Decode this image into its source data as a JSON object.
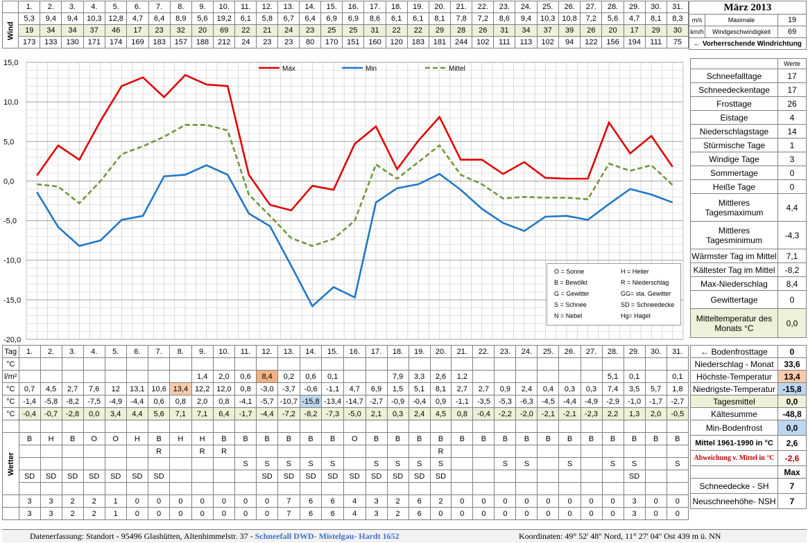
{
  "title": "März 2013",
  "wind": {
    "label": "Wind",
    "unit_ms": "m/s",
    "unit_kmh": "km/h",
    "max_label_1": "Maximale",
    "max_label_2": "Windgeschwindigkeit",
    "max_ms": "19",
    "max_kmh": "69",
    "dir_label": "← Vorherrschende Windrichtung",
    "ms": [
      "5,3",
      "9,4",
      "9,4",
      "10,3",
      "12,8",
      "4,7",
      "6,4",
      "8,9",
      "5,6",
      "19,2",
      "6,1",
      "5,8",
      "6,7",
      "6,4",
      "6,9",
      "6,9",
      "8,6",
      "6,1",
      "6,1",
      "8,1",
      "7,8",
      "7,2",
      "8,6",
      "9,4",
      "10,3",
      "10,8",
      "7,2",
      "5,6",
      "4,7",
      "8,1",
      "8,3"
    ],
    "kmh": [
      "19",
      "34",
      "34",
      "37",
      "46",
      "17",
      "23",
      "32",
      "20",
      "69",
      "22",
      "21",
      "24",
      "23",
      "25",
      "25",
      "31",
      "22",
      "22",
      "29",
      "28",
      "26",
      "31",
      "34",
      "37",
      "39",
      "26",
      "20",
      "17",
      "29",
      "30"
    ],
    "dir": [
      "173",
      "133",
      "130",
      "171",
      "174",
      "169",
      "183",
      "157",
      "188",
      "212",
      "24",
      "23",
      "23",
      "80",
      "170",
      "151",
      "160",
      "120",
      "183",
      "181",
      "244",
      "102",
      "111",
      "113",
      "102",
      "94",
      "122",
      "156",
      "194",
      "111",
      "75"
    ]
  },
  "days": [
    "1.",
    "2.",
    "3.",
    "4.",
    "5.",
    "6.",
    "7.",
    "8.",
    "9.",
    "10.",
    "11.",
    "12.",
    "13.",
    "14.",
    "15.",
    "16.",
    "17.",
    "18.",
    "19.",
    "20.",
    "21.",
    "22.",
    "23.",
    "24.",
    "25.",
    "26.",
    "27.",
    "28.",
    "29.",
    "30.",
    "31."
  ],
  "chart_data": {
    "type": "line",
    "x": [
      1,
      2,
      3,
      4,
      5,
      6,
      7,
      8,
      9,
      10,
      11,
      12,
      13,
      14,
      15,
      16,
      17,
      18,
      19,
      20,
      21,
      22,
      23,
      24,
      25,
      26,
      27,
      28,
      29,
      30,
      31
    ],
    "ylim": [
      -20,
      15
    ],
    "yticks": [
      "15,0",
      "10,0",
      "5,0",
      "0,0",
      "-5,0",
      "-10,0",
      "-15,0",
      "-20,0"
    ],
    "grid": true,
    "legend_position": "top",
    "series": [
      {
        "name": "Max",
        "color": "#e00000",
        "dash": false,
        "values": [
          0.7,
          4.5,
          2.7,
          7.6,
          12.0,
          13.1,
          10.6,
          13.4,
          12.2,
          12.0,
          0.8,
          -3.0,
          -3.7,
          -0.6,
          -1.1,
          4.7,
          6.9,
          1.5,
          5.1,
          8.1,
          2.7,
          2.7,
          0.9,
          2.4,
          0.4,
          0.3,
          0.3,
          7.4,
          3.5,
          5.7,
          1.8
        ]
      },
      {
        "name": "Min",
        "color": "#1f77c8",
        "dash": false,
        "values": [
          -1.4,
          -5.8,
          -8.2,
          -7.5,
          -4.9,
          -4.4,
          0.6,
          0.8,
          2.0,
          0.8,
          -4.1,
          -5.7,
          -10.7,
          -15.8,
          -13.4,
          -14.7,
          -2.7,
          -0.9,
          -0.4,
          0.9,
          -1.1,
          -3.5,
          -5.3,
          -6.3,
          -4.5,
          -4.4,
          -4.9,
          -2.9,
          -1.0,
          -1.7,
          -2.7
        ]
      },
      {
        "name": "Mittel",
        "color": "#70963a",
        "dash": true,
        "values": [
          -0.4,
          -0.7,
          -2.8,
          0.0,
          3.4,
          4.4,
          5.6,
          7.1,
          7.1,
          6.4,
          -1.7,
          -4.4,
          -7.2,
          -8.2,
          -7.3,
          -5.0,
          2.1,
          0.3,
          2.4,
          4.5,
          0.8,
          -0.4,
          -2.2,
          -2.0,
          -2.1,
          -2.1,
          -2.3,
          2.2,
          1.3,
          2.0,
          -0.5
        ]
      }
    ]
  },
  "legend_box": [
    [
      "O = Sonne",
      "H = Heiter"
    ],
    [
      "B = Bewölkt",
      "R = Niederschlag"
    ],
    [
      "G = Gewitter",
      "GG= sta. Gewitter"
    ],
    [
      "S = Schnee",
      "SD = Schneedecke"
    ],
    [
      "N = Nebel",
      "Hg= Hagel"
    ]
  ],
  "stats_header": "Werte",
  "stats": [
    {
      "label": "Schneefalltage",
      "value": "17"
    },
    {
      "label": "Schneedeckentage",
      "value": "17"
    },
    {
      "label": "Frosttage",
      "value": "26"
    },
    {
      "label": "Eistage",
      "value": "4"
    },
    {
      "label": "Niederschlagstage",
      "value": "14"
    },
    {
      "label": "Stürmische Tage",
      "value": "1"
    },
    {
      "label": "Windige Tage",
      "value": "3"
    },
    {
      "label": "Sommertage",
      "value": "0"
    },
    {
      "label": "Heiße Tage",
      "value": "0"
    },
    {
      "label": "Mittleres Tagesmaximum",
      "value": "4,4"
    },
    {
      "label": "Mittleres Tagesminimum",
      "value": "-4,3"
    },
    {
      "label": "Wärmster Tag im Mittel",
      "value": "7,1"
    },
    {
      "label": "Kältester Tag im Mittel",
      "value": "-8,2"
    },
    {
      "label": "Max-Niederschlag",
      "value": "8,4"
    },
    {
      "label": "Gewittertage",
      "value": "0"
    },
    {
      "label": "Mitteltemperatur des Monats °C",
      "value": "0,0"
    }
  ],
  "lower": {
    "tag_label": "Tag",
    "unit_c": "°C",
    "unit_lm": "l/m²",
    "wetter_label": "Wetter",
    "bodenfrost_label": "← Bodenfrosttage",
    "bodenfrost_value": "0",
    "precip": [
      "",
      "",
      "",
      "",
      "",
      "",
      "",
      "",
      "1,4",
      "2,0",
      "0,6",
      "8,4",
      "0,2",
      "0,6",
      "0,1",
      "",
      "",
      "7,9",
      "3,3",
      "2,6",
      "1,2",
      "",
      "",
      "",
      "",
      "",
      "",
      "5,1",
      "0,1",
      "",
      "0,1"
    ],
    "precip_label": "Niederschlag - Monat",
    "precip_value": "33,6",
    "max": [
      "0,7",
      "4,5",
      "2,7",
      "7,6",
      "12",
      "13,1",
      "10,6",
      "13,4",
      "12,2",
      "12,0",
      "0,8",
      "-3,0",
      "-3,7",
      "-0,6",
      "-1,1",
      "4,7",
      "6,9",
      "1,5",
      "5,1",
      "8,1",
      "2,7",
      "2,7",
      "0,9",
      "2,4",
      "0,4",
      "0,3",
      "0,3",
      "7,4",
      "3,5",
      "5,7",
      "1,8"
    ],
    "max_label": "Höchste-Temperatur",
    "max_value": "13,4",
    "min": [
      "-1,4",
      "-5,8",
      "-8,2",
      "-7,5",
      "-4,9",
      "-4,4",
      "0,6",
      "0,8",
      "2,0",
      "0,8",
      "-4,1",
      "-5,7",
      "-10,7",
      "-15,8",
      "-13,4",
      "-14,7",
      "-2,7",
      "-0,9",
      "-0,4",
      "0,9",
      "-1,1",
      "-3,5",
      "-5,3",
      "-6,3",
      "-4,5",
      "-4,4",
      "-4,9",
      "-2,9",
      "-1,0",
      "-1,7",
      "-2,7"
    ],
    "min_label": "Niedrigste-Temperatur",
    "min_value": "-15,8",
    "mean": [
      "-0,4",
      "-0,7",
      "-2,8",
      "0,0",
      "3,4",
      "4,4",
      "5,6",
      "7,1",
      "7,1",
      "6,4",
      "-1,7",
      "-4,4",
      "-7,2",
      "-8,2",
      "-7,3",
      "-5,0",
      "2,1",
      "0,3",
      "2,4",
      "4,5",
      "0,8",
      "-0,4",
      "-2,2",
      "-2,0",
      "-2,1",
      "-2,1",
      "-2,3",
      "2,2",
      "1,3",
      "2,0",
      "-0,5"
    ],
    "mean_label": "Tagesmittel",
    "mean_value": "0,0",
    "kaeltesumme_label": "Kältesumme",
    "kaeltesumme_value": "-48,8",
    "minboden_label": "Min-Bodenfrost",
    "minboden_value": "0,0",
    "w1": [
      "B",
      "H",
      "B",
      "O",
      "O",
      "H",
      "B",
      "H",
      "H",
      "B",
      "B",
      "B",
      "B",
      "B",
      "B",
      "O",
      "B",
      "B",
      "B",
      "B",
      "B",
      "B",
      "B",
      "B",
      "B",
      "B",
      "B",
      "B",
      "B",
      "B",
      "B"
    ],
    "w2": [
      "",
      "",
      "",
      "",
      "",
      "",
      "R",
      "",
      "R",
      "R",
      "",
      "",
      "",
      "",
      "",
      "",
      "",
      "",
      "",
      "R",
      "",
      "",
      "",
      "",
      "",
      "",
      "",
      "",
      "",
      "",
      ""
    ],
    "w3": [
      "",
      "",
      "",
      "",
      "",
      "",
      "",
      "",
      "",
      "",
      "S",
      "S",
      "S",
      "S",
      "S",
      "",
      "S",
      "S",
      "S",
      "S",
      "",
      "",
      "S",
      "S",
      "",
      "S",
      "",
      "S",
      "S",
      "",
      "S"
    ],
    "w4": [
      "SD",
      "SD",
      "SD",
      "SD",
      "SD",
      "SD",
      "SD",
      "",
      "",
      "",
      "",
      "SD",
      "SD",
      "SD",
      "SD",
      "SD",
      "SD",
      "SD",
      "SD",
      "SD",
      "",
      "",
      "",
      "",
      "",
      "",
      "",
      "",
      "SD",
      "",
      ""
    ],
    "mittel_label": "Mittel 1961-1990 in °C",
    "mittel_value": "2,6",
    "abw_label": "Abweichung v. Mittel in °C",
    "abw_value": "-2,6",
    "max_col": "Max",
    "sh": [
      "3",
      "3",
      "2",
      "2",
      "1",
      "0",
      "0",
      "0",
      "0",
      "0",
      "0",
      "0",
      "7",
      "6",
      "6",
      "4",
      "3",
      "2",
      "6",
      "2",
      "0",
      "0",
      "0",
      "0",
      "0",
      "0",
      "0",
      "0",
      "3",
      "0",
      "0"
    ],
    "sh_label": "Schneedecke -   SH",
    "sh_value": "7",
    "nsh": [
      "3",
      "3",
      "2",
      "2",
      "1",
      "0",
      "0",
      "0",
      "0",
      "0",
      "0",
      "0",
      "7",
      "6",
      "6",
      "4",
      "3",
      "2",
      "6",
      "0",
      "0",
      "0",
      "0",
      "0",
      "0",
      "0",
      "0",
      "0",
      "3",
      "0",
      "0"
    ],
    "nsh_label": "Neuschneehöhe- NSH",
    "nsh_value": "7"
  },
  "footer": {
    "left": "Datenerfassung:  Standort -  95496  Glashütten, Altenhimmelstr. 37 - ",
    "blue": "Schneefall DWD- Mistelgau- Hardt 1652",
    "right": "Koordinaten:  49° 52' 48'' Nord,   11° 27' 04'' Ost   439 m ü. NN"
  }
}
